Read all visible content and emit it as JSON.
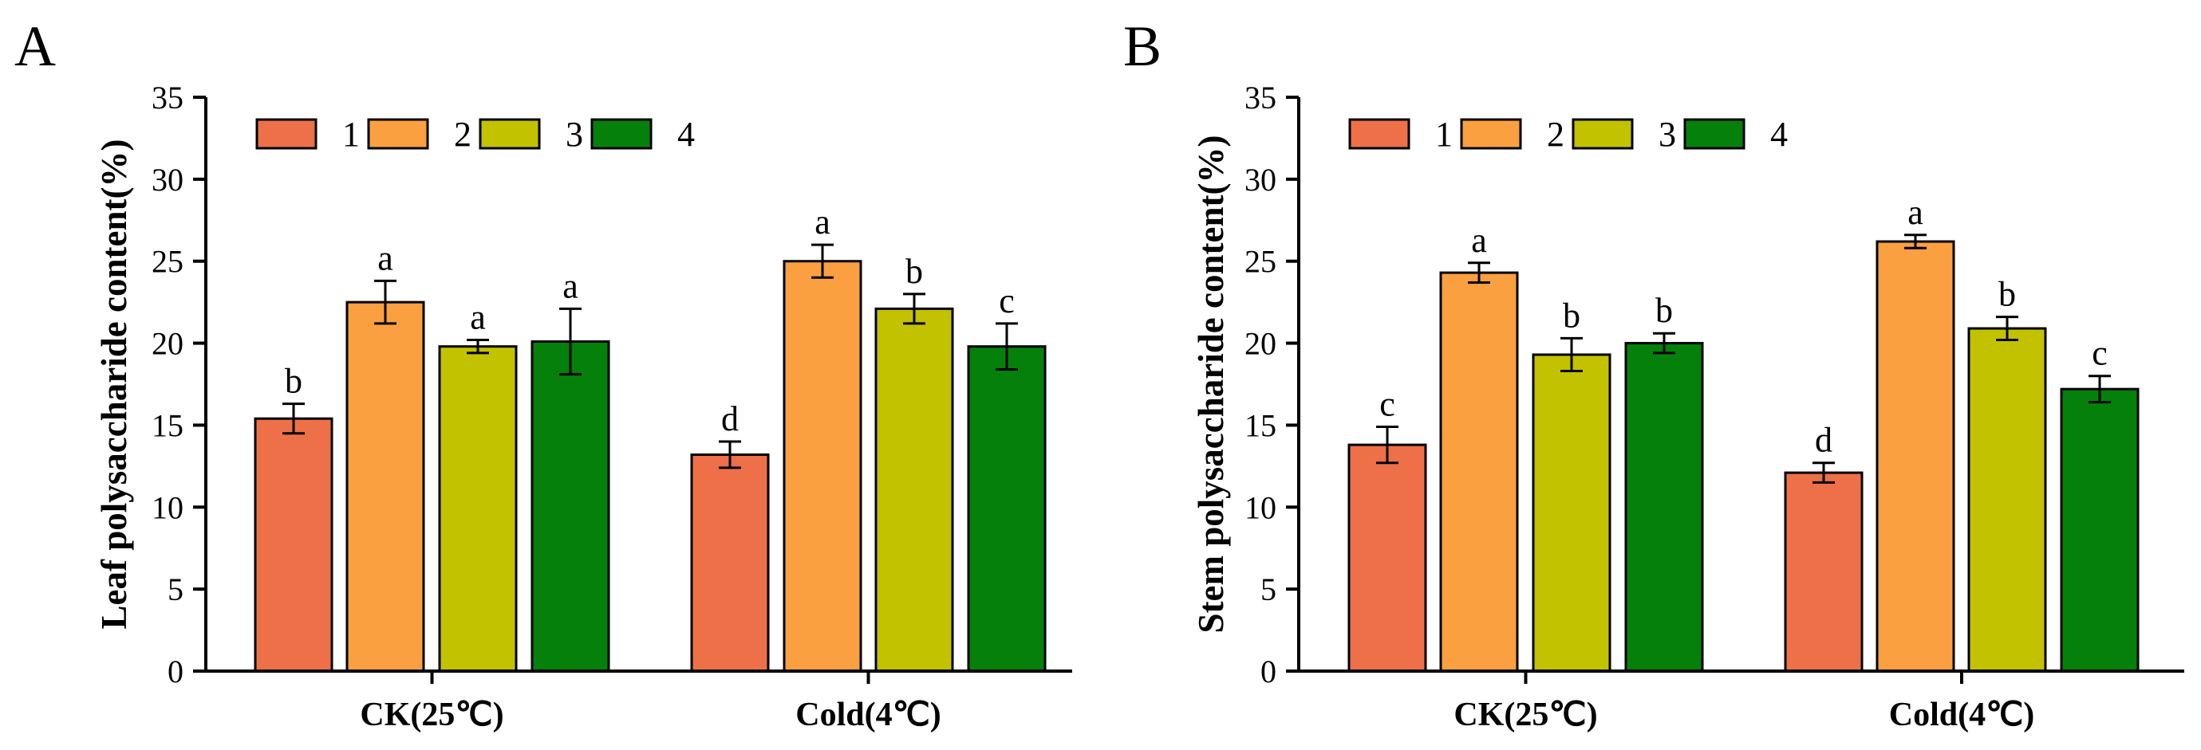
{
  "chart_data": [
    {
      "type": "bar",
      "panel": "A",
      "title": "",
      "xlabel": "",
      "ylabel": "Leaf polysaccharide content(%)",
      "ylim": [
        0,
        35
      ],
      "yticks": [
        0,
        5,
        10,
        15,
        20,
        25,
        30,
        35
      ],
      "categories": [
        "CK(25℃)",
        "Cold(4℃)"
      ],
      "legend_position": "top-left",
      "series": [
        {
          "name": "1",
          "color": "#EE7049",
          "values": [
            15.4,
            13.2
          ],
          "errors": [
            0.9,
            0.8
          ],
          "labels": [
            "b",
            "d"
          ]
        },
        {
          "name": "2",
          "color": "#FBA040",
          "values": [
            22.5,
            25.0
          ],
          "errors": [
            1.3,
            1.0
          ],
          "labels": [
            "a",
            "a"
          ]
        },
        {
          "name": "3",
          "color": "#C3C200",
          "values": [
            19.8,
            22.1
          ],
          "errors": [
            0.4,
            0.9
          ],
          "labels": [
            "a",
            "b"
          ]
        },
        {
          "name": "4",
          "color": "#05800A",
          "values": [
            20.1,
            19.8
          ],
          "errors": [
            2.0,
            1.4
          ],
          "labels": [
            "a",
            "c"
          ]
        }
      ]
    },
    {
      "type": "bar",
      "panel": "B",
      "title": "",
      "xlabel": "",
      "ylabel": "Stem polysaccharide content(%)",
      "ylim": [
        0,
        35
      ],
      "yticks": [
        0,
        5,
        10,
        15,
        20,
        25,
        30,
        35
      ],
      "categories": [
        "CK(25℃)",
        "Cold(4℃)"
      ],
      "legend_position": "top-left",
      "series": [
        {
          "name": "1",
          "color": "#EE7049",
          "values": [
            13.8,
            12.1
          ],
          "errors": [
            1.1,
            0.6
          ],
          "labels": [
            "c",
            "d"
          ]
        },
        {
          "name": "2",
          "color": "#FBA040",
          "values": [
            24.3,
            26.2
          ],
          "errors": [
            0.6,
            0.4
          ],
          "labels": [
            "a",
            "a"
          ]
        },
        {
          "name": "3",
          "color": "#C3C200",
          "values": [
            19.3,
            20.9
          ],
          "errors": [
            1.0,
            0.7
          ],
          "labels": [
            "b",
            "b"
          ]
        },
        {
          "name": "4",
          "color": "#05800A",
          "values": [
            20.0,
            17.2
          ],
          "errors": [
            0.6,
            0.8
          ],
          "labels": [
            "b",
            "c"
          ]
        }
      ]
    }
  ]
}
